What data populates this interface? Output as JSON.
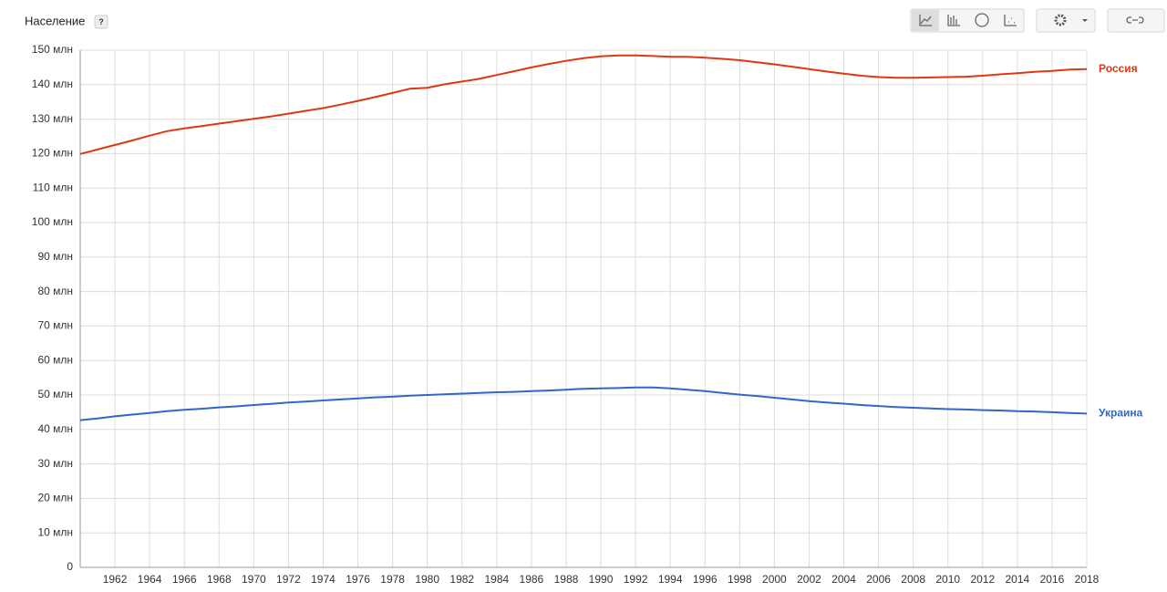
{
  "chart_data": {
    "type": "line",
    "title": "Население",
    "help": "?",
    "x": [
      1960,
      1961,
      1962,
      1963,
      1964,
      1965,
      1966,
      1967,
      1968,
      1969,
      1970,
      1971,
      1972,
      1973,
      1974,
      1975,
      1976,
      1977,
      1978,
      1979,
      1980,
      1981,
      1982,
      1983,
      1984,
      1985,
      1986,
      1987,
      1988,
      1989,
      1990,
      1991,
      1992,
      1993,
      1994,
      1995,
      1996,
      1997,
      1998,
      1999,
      2000,
      2001,
      2002,
      2003,
      2004,
      2005,
      2006,
      2007,
      2008,
      2009,
      2010,
      2011,
      2012,
      2013,
      2014,
      2015,
      2016,
      2017,
      2018
    ],
    "series": [
      {
        "name": "Россия",
        "color": "#dc3912",
        "values": [
          119.9,
          121.2,
          122.5,
          123.8,
          125.2,
          126.5,
          127.3,
          128.0,
          128.7,
          129.4,
          130.1,
          130.8,
          131.6,
          132.4,
          133.2,
          134.2,
          135.3,
          136.4,
          137.6,
          138.8,
          139.1,
          140.1,
          140.9,
          141.7,
          142.8,
          143.9,
          145.0,
          146.0,
          146.9,
          147.7,
          148.2,
          148.5,
          148.5,
          148.3,
          148.1,
          148.1,
          147.8,
          147.5,
          147.1,
          146.5,
          145.9,
          145.2,
          144.5,
          143.8,
          143.2,
          142.6,
          142.2,
          142.0,
          142.0,
          142.1,
          142.2,
          142.3,
          142.6,
          143.0,
          143.3,
          143.7,
          144.0,
          144.4,
          144.5
        ]
      },
      {
        "name": "Украина",
        "color": "#3366cc",
        "values": [
          42.7,
          43.2,
          43.8,
          44.3,
          44.8,
          45.3,
          45.7,
          46.0,
          46.4,
          46.7,
          47.1,
          47.4,
          47.8,
          48.1,
          48.4,
          48.7,
          49.0,
          49.3,
          49.5,
          49.8,
          50.0,
          50.2,
          50.4,
          50.6,
          50.8,
          50.9,
          51.1,
          51.3,
          51.5,
          51.8,
          51.9,
          52.0,
          52.2,
          52.2,
          51.9,
          51.5,
          51.1,
          50.6,
          50.1,
          49.7,
          49.2,
          48.7,
          48.2,
          47.8,
          47.5,
          47.1,
          46.8,
          46.5,
          46.3,
          46.1,
          45.9,
          45.8,
          45.6,
          45.5,
          45.3,
          45.2,
          45.0,
          44.8,
          44.6
        ]
      }
    ],
    "xlim": [
      1960,
      2018
    ],
    "xticks": [
      1962,
      1964,
      1966,
      1968,
      1970,
      1972,
      1974,
      1976,
      1978,
      1980,
      1982,
      1984,
      1986,
      1988,
      1990,
      1992,
      1994,
      1996,
      1998,
      2000,
      2002,
      2004,
      2006,
      2008,
      2010,
      2012,
      2014,
      2016,
      2018
    ],
    "ylim": [
      0,
      150
    ],
    "yticks": [
      0,
      {
        "value": 10,
        "label": "10 млн"
      },
      {
        "value": 20,
        "label": "20 млн"
      },
      {
        "value": 30,
        "label": "30 млн"
      },
      {
        "value": 40,
        "label": "40 млн"
      },
      {
        "value": 50,
        "label": "50 млн"
      },
      {
        "value": 60,
        "label": "60 млн"
      },
      {
        "value": 70,
        "label": "70 млн"
      },
      {
        "value": 80,
        "label": "80 млн"
      },
      {
        "value": 90,
        "label": "90 млн"
      },
      {
        "value": 100,
        "label": "100 млн"
      },
      {
        "value": 110,
        "label": "110 млн"
      },
      {
        "value": 120,
        "label": "120 млн"
      },
      {
        "value": 130,
        "label": "130 млн"
      },
      {
        "value": 140,
        "label": "140 млн"
      },
      {
        "value": 150,
        "label": "150 млн"
      }
    ],
    "grid": true
  }
}
